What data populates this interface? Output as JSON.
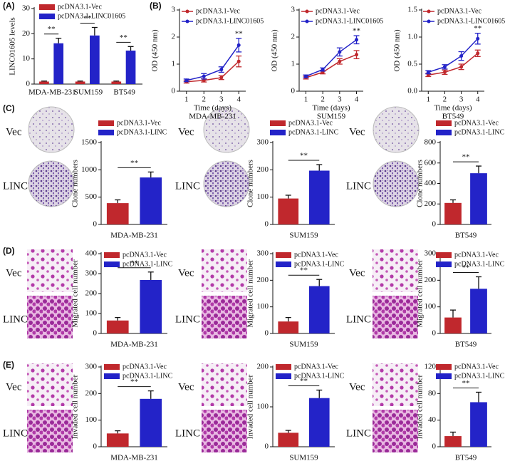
{
  "panel_labels": [
    "(A)",
    "(B)",
    "(C)",
    "(D)",
    "(E)"
  ],
  "image_labels": {
    "vec": "Vec",
    "linc": "LINC"
  },
  "chart_data": [
    {
      "type": "grouped_bar",
      "y_label": "LINC01605 levels",
      "categories": [
        "MDA-MB-231",
        "SUM159",
        "BT549"
      ],
      "series": [
        {
          "name": "pcDNA3.1-Vec",
          "color": "#c0282d",
          "values": [
            1,
            1,
            1
          ],
          "errors": [
            0.2,
            0.2,
            0.2
          ]
        },
        {
          "name": "pcDNA3.1-LINC01605",
          "color": "#2323c8",
          "values": [
            16.2,
            19.3,
            13.3
          ],
          "errors": [
            2,
            3.2,
            1.6
          ]
        }
      ],
      "ylim": [
        0,
        30
      ],
      "yticks": [
        0,
        10,
        20,
        30
      ],
      "annotations": [
        "**",
        "**",
        "**"
      ]
    },
    {
      "type": "line",
      "y_label": "OD (450 nm)",
      "x_label": "Time (days)",
      "subtitle": "MDA-MB-231",
      "x": [
        1,
        2,
        3,
        4
      ],
      "xlim": [
        0.6,
        4.4
      ],
      "xticks": [
        1,
        2,
        3,
        4
      ],
      "ylim": [
        0,
        3
      ],
      "yticks": [
        0,
        1,
        2,
        3
      ],
      "series": [
        {
          "name": "pcDNA3.1-Vec",
          "color": "#c0282d",
          "values": [
            0.35,
            0.4,
            0.5,
            1.1
          ],
          "errors": [
            0.05,
            0.06,
            0.07,
            0.2
          ]
        },
        {
          "name": "pcDNA3.1-LINC01605",
          "color": "#2323c8",
          "values": [
            0.4,
            0.55,
            0.8,
            1.7
          ],
          "errors": [
            0.05,
            0.1,
            0.1,
            0.25
          ]
        }
      ],
      "annotation": "**"
    },
    {
      "type": "line",
      "y_label": "OD (450 nm)",
      "x_label": "Time (days)",
      "subtitle": "SUM159",
      "x": [
        1,
        2,
        3,
        4
      ],
      "xlim": [
        0.6,
        4.4
      ],
      "xticks": [
        1,
        2,
        3,
        4
      ],
      "ylim": [
        0,
        3
      ],
      "yticks": [
        0,
        1,
        2,
        3
      ],
      "series": [
        {
          "name": "pcDNA3.1-Vec",
          "color": "#c0282d",
          "values": [
            0.5,
            0.7,
            1.1,
            1.35
          ],
          "errors": [
            0.05,
            0.06,
            0.1,
            0.15
          ]
        },
        {
          "name": "pcDNA3.1-LINC01605",
          "color": "#2323c8",
          "values": [
            0.55,
            0.8,
            1.45,
            1.9
          ],
          "errors": [
            0.05,
            0.06,
            0.15,
            0.15
          ]
        }
      ],
      "annotation": "**"
    },
    {
      "type": "line",
      "y_label": "OD (450 nm)",
      "x_label": "Time (days)",
      "subtitle": "BT549",
      "x": [
        1,
        2,
        3,
        4
      ],
      "xlim": [
        0.6,
        4.4
      ],
      "xticks": [
        1,
        2,
        3,
        4
      ],
      "ylim": [
        0,
        1.5
      ],
      "yticks": [
        {
          "value": 0,
          "label": "0.0"
        },
        {
          "value": 0.5,
          "label": "0.5"
        },
        {
          "value": 1,
          "label": "1.0"
        },
        {
          "value": 1.5,
          "label": "1.5"
        }
      ],
      "series": [
        {
          "name": "pcDNA3.1-Vec",
          "color": "#c0282d",
          "values": [
            0.3,
            0.35,
            0.45,
            0.7
          ],
          "errors": [
            0.03,
            0.04,
            0.05,
            0.06
          ]
        },
        {
          "name": "pcDNA3.1-LINC01605",
          "color": "#2323c8",
          "values": [
            0.35,
            0.45,
            0.65,
            0.97
          ],
          "errors": [
            0.03,
            0.04,
            0.08,
            0.1
          ]
        }
      ],
      "annotation": "**"
    },
    {
      "type": "bar",
      "y_label": "Clone numbers",
      "x_label": "MDA-MB-231",
      "ylim": [
        0,
        1500
      ],
      "yticks": [
        0,
        500,
        1000,
        1500
      ],
      "series": [
        {
          "name": "pcDNA3.1-Vec",
          "color": "#c0282d",
          "values": [
            390
          ],
          "errors": [
            60
          ]
        },
        {
          "name": "pcDNA3.1-LINC",
          "color": "#2323c8",
          "values": [
            860
          ],
          "errors": [
            100
          ]
        }
      ],
      "annotation": "**"
    },
    {
      "type": "bar",
      "y_label": "Clone numbers",
      "x_label": "SUM159",
      "ylim": [
        0,
        300
      ],
      "yticks": [
        0,
        100,
        200,
        300
      ],
      "series": [
        {
          "name": "pcDNA3.1-Vec",
          "color": "#c0282d",
          "values": [
            95
          ],
          "errors": [
            12
          ]
        },
        {
          "name": "pcDNA3.1-LINC",
          "color": "#2323c8",
          "values": [
            197
          ],
          "errors": [
            22
          ]
        }
      ],
      "annotation": "**"
    },
    {
      "type": "bar",
      "y_label": "Clone numbers",
      "x_label": "BT549",
      "ylim": [
        0,
        800
      ],
      "yticks": [
        0,
        200,
        400,
        600,
        800
      ],
      "series": [
        {
          "name": "pcDNA3.1-Vec",
          "color": "#c0282d",
          "values": [
            210
          ],
          "errors": [
            30
          ]
        },
        {
          "name": "pcDNA3.1-LINC",
          "color": "#2323c8",
          "values": [
            500
          ],
          "errors": [
            70
          ]
        }
      ],
      "annotation": "**"
    },
    {
      "type": "bar",
      "y_label": "Migrated cell number",
      "x_label": "MDA-MB-231",
      "ylim": [
        0,
        400
      ],
      "yticks": [
        0,
        100,
        200,
        300,
        400
      ],
      "series": [
        {
          "name": "pcDNA3.1-Vec",
          "color": "#c0282d",
          "values": [
            65
          ],
          "errors": [
            15
          ]
        },
        {
          "name": "pcDNA3.1-LINC",
          "color": "#2323c8",
          "values": [
            268
          ],
          "errors": [
            40
          ]
        }
      ],
      "annotation": "**"
    },
    {
      "type": "bar",
      "y_label": "Migrated cell number",
      "x_label": "SUM159",
      "ylim": [
        0,
        300
      ],
      "yticks": [
        0,
        100,
        200,
        300
      ],
      "series": [
        {
          "name": "pcDNA3.1-Vec",
          "color": "#c0282d",
          "values": [
            45
          ],
          "errors": [
            15
          ]
        },
        {
          "name": "pcDNA3.1-LINC",
          "color": "#2323c8",
          "values": [
            178
          ],
          "errors": [
            25
          ]
        }
      ],
      "annotation": "**"
    },
    {
      "type": "bar",
      "y_label": "Migrated cell number",
      "x_label": "BT549",
      "ylim": [
        0,
        300
      ],
      "yticks": [
        0,
        100,
        200,
        300
      ],
      "series": [
        {
          "name": "pcDNA3.1-Vec",
          "color": "#c0282d",
          "values": [
            60
          ],
          "errors": [
            28
          ]
        },
        {
          "name": "pcDNA3.1-LINC",
          "color": "#2323c8",
          "values": [
            168
          ],
          "errors": [
            45
          ]
        }
      ],
      "annotation": "**"
    },
    {
      "type": "bar",
      "y_label": "Invaded cell number",
      "x_label": "MDA-MB-231",
      "ylim": [
        0,
        300
      ],
      "yticks": [
        0,
        100,
        200,
        300
      ],
      "series": [
        {
          "name": "pcDNA3.1-Vec",
          "color": "#c0282d",
          "values": [
            50
          ],
          "errors": [
            10
          ]
        },
        {
          "name": "pcDNA3.1-LINC",
          "color": "#2323c8",
          "values": [
            180
          ],
          "errors": [
            30
          ]
        }
      ],
      "annotation": "**"
    },
    {
      "type": "bar",
      "y_label": "Invaded cell number",
      "x_label": "SUM159",
      "ylim": [
        0,
        200
      ],
      "yticks": [
        0,
        100,
        200
      ],
      "series": [
        {
          "name": "pcDNA3.1-Vec",
          "color": "#c0282d",
          "values": [
            35
          ],
          "errors": [
            6
          ]
        },
        {
          "name": "pcDNA3.1-LINC",
          "color": "#2323c8",
          "values": [
            122
          ],
          "errors": [
            20
          ]
        }
      ],
      "annotation": "**"
    },
    {
      "type": "bar",
      "y_label": "Invaded cell number",
      "x_label": "BT549",
      "ylim": [
        0,
        120
      ],
      "yticks": [
        0,
        40,
        80,
        120
      ],
      "series": [
        {
          "name": "pcDNA3.1-Vec",
          "color": "#c0282d",
          "values": [
            16
          ],
          "errors": [
            6
          ]
        },
        {
          "name": "pcDNA3.1-LINC",
          "color": "#2323c8",
          "values": [
            67
          ],
          "errors": [
            15
          ]
        }
      ],
      "annotation": "**"
    }
  ]
}
